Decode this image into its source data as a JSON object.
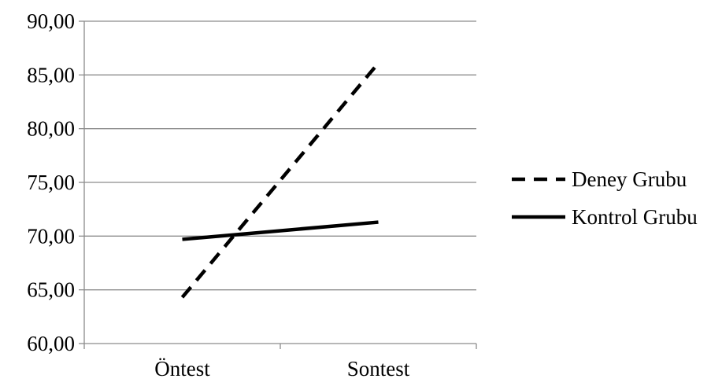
{
  "chart_data": {
    "type": "line",
    "categories": [
      "Öntest",
      "Sontest"
    ],
    "series": [
      {
        "name": "Deney Grubu",
        "values": [
          64.3,
          86.1
        ],
        "color": "#000000",
        "style": "dashed"
      },
      {
        "name": "Kontrol Grubu",
        "values": [
          69.7,
          71.3
        ],
        "color": "#000000",
        "style": "solid"
      }
    ],
    "ylim": [
      60,
      90
    ],
    "yticks": [
      60,
      65,
      70,
      75,
      80,
      85,
      90
    ],
    "ytick_labels": [
      "60,00",
      "65,00",
      "70,00",
      "75,00",
      "80,00",
      "85,00",
      "90,00"
    ],
    "grid": true,
    "legend_position": "right"
  }
}
